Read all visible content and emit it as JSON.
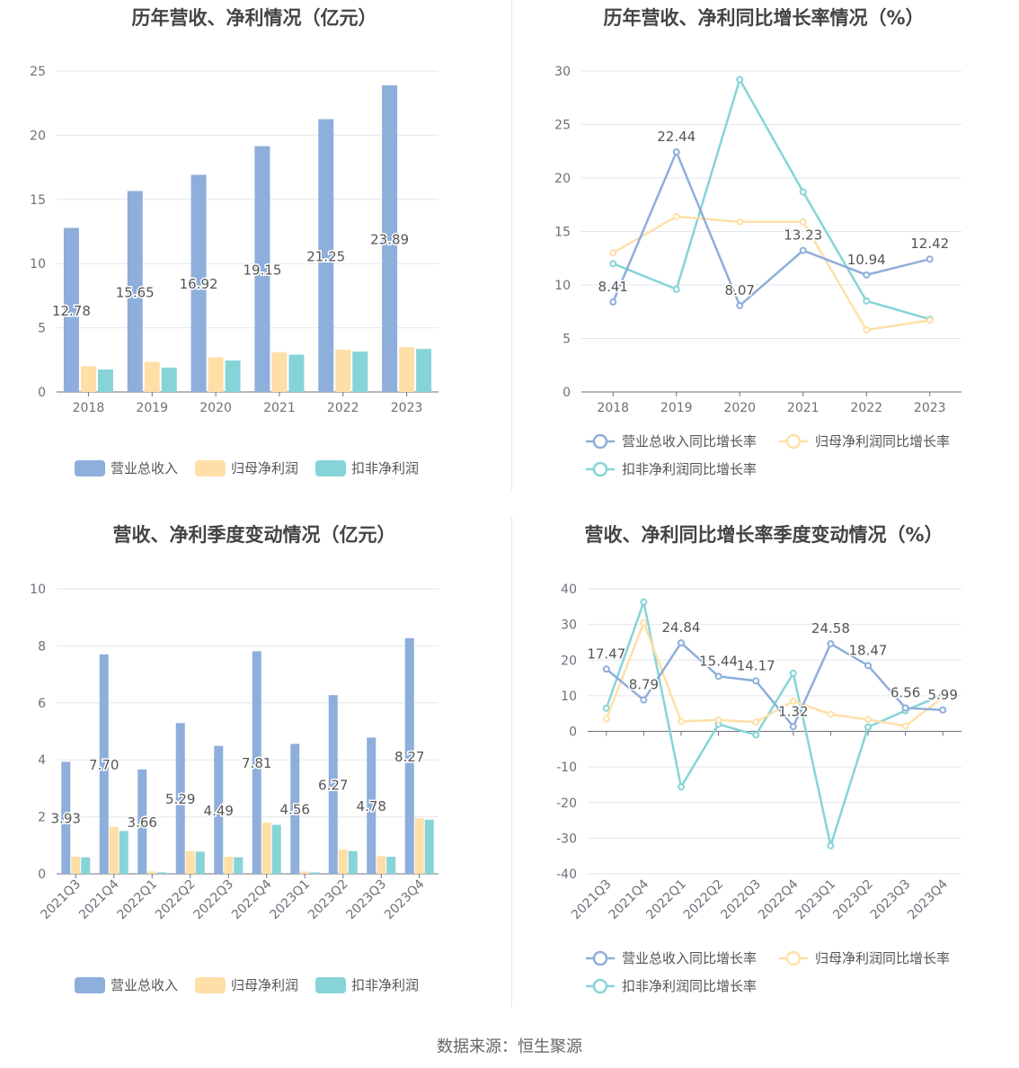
{
  "source": "数据来源：恒生聚源",
  "colors": {
    "revenue": "#8eaedb",
    "parent": "#ffdfa8",
    "deducted": "#86d4d7",
    "grid": "#e3e6ef",
    "axis": "#6e7079",
    "label": "#555555",
    "title": "#444444"
  },
  "chart_data": [
    {
      "type": "bar",
      "title": "历年营收、净利情况（亿元）",
      "categories": [
        "2018",
        "2019",
        "2020",
        "2021",
        "2022",
        "2023"
      ],
      "ylim": [
        0,
        25
      ],
      "yticks": [
        0,
        5,
        10,
        15,
        20,
        25
      ],
      "series": [
        {
          "name": "营业总收入",
          "values": [
            12.78,
            15.65,
            16.92,
            19.15,
            21.25,
            23.89
          ]
        },
        {
          "name": "归母净利润",
          "values": [
            2.0,
            2.35,
            2.7,
            3.1,
            3.3,
            3.5
          ]
        },
        {
          "name": "扣非净利润",
          "values": [
            1.75,
            1.9,
            2.45,
            2.9,
            3.15,
            3.35
          ]
        }
      ],
      "data_labels": [
        "12.78",
        "15.65",
        "16.92",
        "19.15",
        "21.25",
        "23.89"
      ]
    },
    {
      "type": "line",
      "title": "历年营收、净利同比增长率情况（%）",
      "categories": [
        "2018",
        "2019",
        "2020",
        "2021",
        "2022",
        "2023"
      ],
      "ylim": [
        0,
        30
      ],
      "yticks": [
        0,
        5,
        10,
        15,
        20,
        25,
        30
      ],
      "series": [
        {
          "name": "营业总收入同比增长率",
          "values": [
            8.41,
            22.44,
            8.07,
            13.23,
            10.94,
            12.42
          ]
        },
        {
          "name": "归母净利润同比增长率",
          "values": [
            13.0,
            16.4,
            15.9,
            15.9,
            5.8,
            6.7
          ]
        },
        {
          "name": "扣非净利润同比增长率",
          "values": [
            12.0,
            9.6,
            29.2,
            18.7,
            8.5,
            6.8
          ]
        }
      ],
      "data_labels": [
        "8.41",
        "22.44",
        "8.07",
        "13.23",
        "10.94",
        "12.42"
      ]
    },
    {
      "type": "bar",
      "title": "营收、净利季度变动情况（亿元）",
      "categories": [
        "2021Q3",
        "2021Q4",
        "2022Q1",
        "2022Q2",
        "2022Q3",
        "2022Q4",
        "2023Q1",
        "2023Q2",
        "2023Q3",
        "2023Q4"
      ],
      "ylim": [
        0,
        10
      ],
      "yticks": [
        0,
        2,
        4,
        6,
        8,
        10
      ],
      "series": [
        {
          "name": "营业总收入",
          "values": [
            3.93,
            7.7,
            3.66,
            5.29,
            4.49,
            7.81,
            4.56,
            6.27,
            4.78,
            8.27
          ]
        },
        {
          "name": "归母净利润",
          "values": [
            0.6,
            1.65,
            0.08,
            0.8,
            0.6,
            1.8,
            0.08,
            0.85,
            0.62,
            1.95
          ]
        },
        {
          "name": "扣非净利润",
          "values": [
            0.58,
            1.5,
            0.05,
            0.78,
            0.58,
            1.72,
            0.05,
            0.8,
            0.6,
            1.9
          ]
        }
      ],
      "data_labels": [
        "3.93",
        "7.70",
        "3.66",
        "5.29",
        "4.49",
        "7.81",
        "4.56",
        "6.27",
        "4.78",
        "8.27"
      ]
    },
    {
      "type": "line",
      "title": "营收、净利同比增长率季度变动情况（%）",
      "categories": [
        "2021Q3",
        "2021Q4",
        "2022Q1",
        "2022Q2",
        "2022Q3",
        "2022Q4",
        "2023Q1",
        "2023Q2",
        "2023Q3",
        "2023Q4"
      ],
      "ylim": [
        -40,
        40
      ],
      "yticks": [
        -40,
        -30,
        -20,
        -10,
        0,
        10,
        20,
        30,
        40
      ],
      "series": [
        {
          "name": "营业总收入同比增长率",
          "values": [
            17.47,
            8.79,
            24.84,
            15.44,
            14.17,
            1.32,
            24.58,
            18.47,
            6.56,
            5.99
          ]
        },
        {
          "name": "归母净利润同比增长率",
          "values": [
            3.5,
            30.5,
            2.8,
            3.2,
            2.6,
            8.5,
            4.8,
            3.3,
            1.5,
            9.5
          ]
        },
        {
          "name": "扣非净利润同比增长率",
          "values": [
            6.5,
            36.3,
            -15.6,
            2.0,
            -1.0,
            16.3,
            -32.1,
            1.2,
            5.8,
            10.3
          ]
        }
      ],
      "data_labels": [
        "17.47",
        "8.79",
        "24.84",
        "15.44",
        "14.17",
        "1.32",
        "24.58",
        "18.47",
        "6.56",
        "5.99"
      ]
    }
  ]
}
